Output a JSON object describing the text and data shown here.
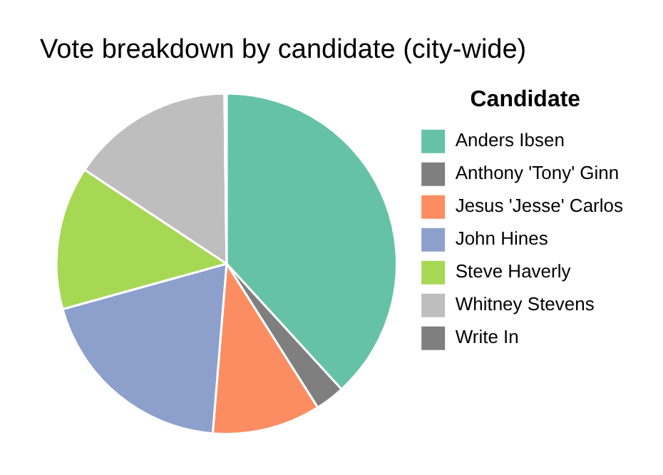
{
  "chart_data": {
    "type": "pie",
    "title": "Vote breakdown by candidate (city-wide)",
    "legend_title": "Candidate",
    "legend": "right",
    "categories": [
      "Anders Ibsen",
      "Anthony 'Tony' Ginn",
      "Jesus 'Jesse' Carlos",
      "John Hines",
      "Steve Haverly",
      "Whitney Stevens",
      "Write In"
    ],
    "values": [
      38.2,
      2.8,
      10.3,
      19.4,
      13.6,
      15.5,
      0.2
    ],
    "colors": [
      "#66c2a5",
      "#7f7f7f",
      "#fc8d62",
      "#8da0cb",
      "#a6d854",
      "#bebebe",
      "#7f7f7f"
    ]
  }
}
